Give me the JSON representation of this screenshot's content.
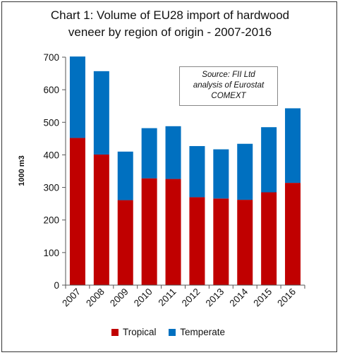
{
  "chart_data": {
    "type": "bar",
    "stacked": true,
    "title_lines": [
      "Chart 1: Volume of EU28 import of hardwood",
      "veneer by region of origin - 2007-2016"
    ],
    "ylabel": "1000 m3",
    "xlabel": "",
    "ylim": [
      0,
      700
    ],
    "yticks": [
      0,
      100,
      200,
      300,
      400,
      500,
      600,
      700
    ],
    "categories": [
      "2007",
      "2008",
      "2009",
      "2010",
      "2011",
      "2012",
      "2013",
      "2014",
      "2015",
      "2016"
    ],
    "series": [
      {
        "name": "Tropical",
        "color": "#C00000",
        "values": [
          452,
          401,
          261,
          328,
          326,
          270,
          266,
          262,
          285,
          314
        ]
      },
      {
        "name": "Temperate",
        "color": "#0070C0",
        "values": [
          250,
          256,
          149,
          154,
          162,
          157,
          151,
          172,
          200,
          229
        ]
      }
    ],
    "grid": false,
    "legend_position": "bottom",
    "annotation_lines": [
      "Source: FII Ltd",
      "analysis of Eurostat",
      "COMEXT"
    ]
  }
}
